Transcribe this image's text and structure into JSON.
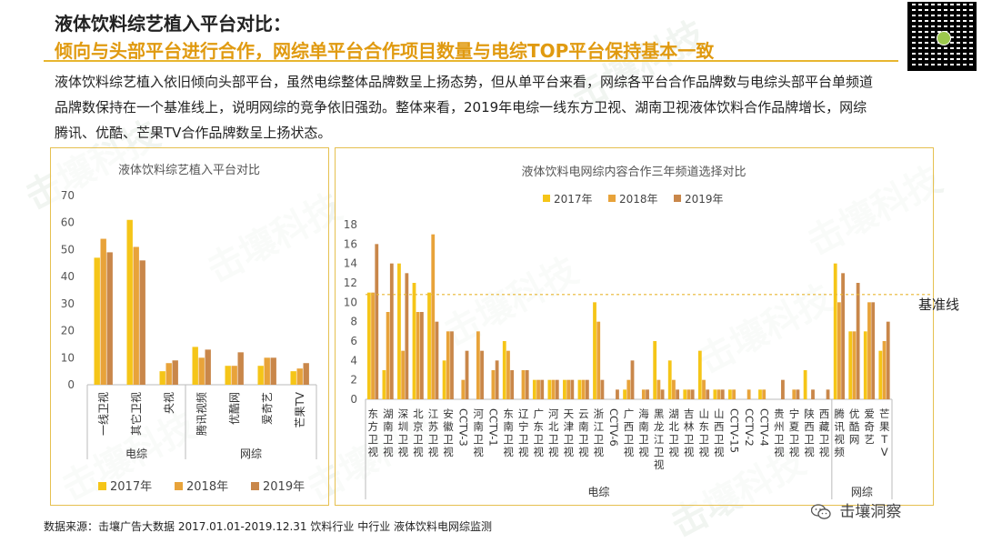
{
  "header": {
    "title_line1": "液体饮料综艺植入平台对比：",
    "title_line2": "倾向与头部平台进行合作，网综单平台合作项目数量与电综TOP平台保持基本一致"
  },
  "description": "液体饮料综艺植入依旧倾向头部平台，虽然电综整体品牌数呈上扬态势，但从单平台来看，网综各平台合作品牌数与电综头部平台单频道品牌数保持在一个基准线上，说明网综的竞争依旧强劲。整体来看，2019年电综一线东方卫视、湖南卫视液体饮料合作品牌增长，网综腾讯、优酷、芒果TV合作品牌数呈上扬状态。",
  "watermark_text": "击壤科技",
  "source": "数据来源：击壤广告大数据 2017.01.01-2019.12.31 饮料行业 中行业 液体饮料电网综监测",
  "wechat": "击壤洞察",
  "baseline_label": "基准线",
  "colors": {
    "y2017": "#f5c518",
    "y2018": "#e8a33a",
    "y2019": "#c9874a",
    "accent": "#e8b630",
    "baseline": "#e8b630"
  },
  "chart_data": [
    {
      "type": "bar",
      "title": "液体饮料综艺植入平台对比",
      "categories": [
        "一线卫视",
        "其它卫视",
        "央视",
        "腾讯视频",
        "优酷网",
        "爱奇艺",
        "芒果TV"
      ],
      "groups": [
        {
          "name": "电综",
          "categories": [
            "一线卫视",
            "其它卫视",
            "央视"
          ]
        },
        {
          "name": "网综",
          "categories": [
            "腾讯视频",
            "优酷网",
            "爱奇艺",
            "芒果TV"
          ]
        }
      ],
      "series": [
        {
          "name": "2017年",
          "values": [
            47,
            61,
            5,
            14,
            7,
            7,
            5
          ]
        },
        {
          "name": "2018年",
          "values": [
            54,
            51,
            8,
            10,
            7,
            10,
            6
          ]
        },
        {
          "name": "2019年",
          "values": [
            49,
            46,
            9,
            13,
            12,
            10,
            8
          ]
        }
      ],
      "yticks": [
        0,
        10,
        20,
        30,
        40,
        50,
        60,
        70
      ],
      "ylim": [
        0,
        70
      ],
      "legend_position": "bottom"
    },
    {
      "type": "bar",
      "title": "液体饮料电网综内容合作三年频道选择对比",
      "categories": [
        "东方卫视",
        "湖南卫视",
        "深圳卫视",
        "北京卫视",
        "江苏卫视",
        "安徽卫视",
        "CCTV-3",
        "河南卫视",
        "CCTV-1",
        "东南卫视",
        "辽宁卫视",
        "广东卫视",
        "河北卫视",
        "天津卫视",
        "云南卫视",
        "浙江卫视",
        "CCTV-6",
        "广西卫视",
        "海南卫视",
        "黑龙江卫视",
        "湖北卫视",
        "吉林卫视",
        "山东卫视",
        "山西卫视",
        "CCTV-15",
        "CCTV-2",
        "CCTV-4",
        "贵州卫视",
        "宁夏卫视",
        "陕西卫视",
        "西藏卫视",
        "腾讯视频",
        "优酷网",
        "爱奇艺",
        "芒果TV"
      ],
      "groups": [
        {
          "name": "电综",
          "from": 0,
          "to": 30
        },
        {
          "name": "网综",
          "from": 31,
          "to": 34
        }
      ],
      "series": [
        {
          "name": "2017年",
          "values": [
            11,
            3,
            14,
            12,
            11,
            4,
            0,
            0,
            0,
            6,
            0,
            2,
            2,
            2,
            2,
            10,
            0,
            1,
            0,
            6,
            4,
            1,
            5,
            1,
            1,
            0,
            1,
            0,
            0,
            3,
            0,
            14,
            7,
            7,
            5
          ]
        },
        {
          "name": "2018年",
          "values": [
            11,
            9,
            5,
            9,
            17,
            7,
            2,
            7,
            3,
            5,
            3,
            2,
            2,
            2,
            2,
            8,
            0,
            2,
            1,
            2,
            2,
            1,
            2,
            1,
            1,
            1,
            1,
            0,
            1,
            0,
            0,
            10,
            7,
            10,
            6
          ]
        },
        {
          "name": "2019年",
          "values": [
            16,
            14,
            13,
            9,
            8,
            7,
            5,
            5,
            4,
            3,
            3,
            2,
            2,
            2,
            2,
            2,
            1,
            4,
            1,
            1,
            1,
            1,
            1,
            1,
            0,
            0,
            0,
            2,
            1,
            1,
            1,
            13,
            12,
            10,
            8
          ]
        }
      ],
      "yticks": [
        0,
        2,
        4,
        6,
        8,
        10,
        12,
        14,
        16,
        18
      ],
      "ylim": [
        0,
        18
      ],
      "baseline_value": 10.8,
      "legend_position": "top"
    }
  ]
}
